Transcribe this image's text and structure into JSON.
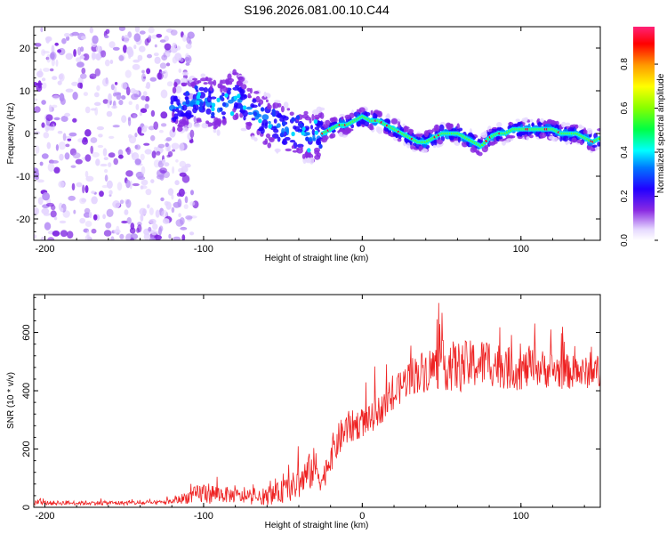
{
  "title": "S196.2026.081.00.10.C44",
  "colors": {
    "snr_line": "#ee2222",
    "axis": "#000000",
    "background": "#ffffff"
  },
  "chart_data": [
    {
      "type": "heatmap",
      "title": "S196.2026.081.00.10.C44",
      "xlabel": "Height of straight line (km)",
      "ylabel": "Frequency (Hz)",
      "xlim": [
        -207,
        150
      ],
      "ylim": [
        -25,
        25
      ],
      "xticks": [
        -200,
        -100,
        0,
        100
      ],
      "xtick_labels": [
        "-200",
        "-100",
        "0",
        "100"
      ],
      "yticks": [
        20,
        10,
        0,
        -10,
        -20
      ],
      "ytick_labels": [
        "20",
        "10",
        "0",
        "-10",
        "-20"
      ],
      "colorbar": {
        "label": "Normalized spectral amplitude",
        "range": [
          0.0,
          0.97
        ],
        "ticks": [
          0.0,
          0.2,
          0.4,
          0.6,
          0.8
        ],
        "tick_labels": [
          "0.0",
          "0.2",
          "0.4",
          "0.6",
          "0.8"
        ],
        "colormap": "rainbow (white-violet-blue-cyan-green-yellow-red-magenta)"
      },
      "ridge_path": {
        "x": [
          -120,
          -110,
          -100,
          -90,
          -80,
          -70,
          -60,
          -50,
          -40,
          -30,
          -25,
          -20,
          -15,
          -10,
          -5,
          0,
          5,
          10,
          15,
          20,
          25,
          30,
          35,
          40,
          45,
          50,
          55,
          60,
          65,
          70,
          75,
          80,
          85,
          90,
          95,
          100,
          105,
          110,
          115,
          120,
          125,
          130,
          135,
          140,
          145,
          150
        ],
        "freq": [
          6,
          7,
          8,
          6,
          9,
          5,
          3,
          1,
          0,
          -1,
          0,
          1,
          2,
          2,
          3,
          4,
          3,
          3,
          2,
          1,
          0,
          -1,
          -2,
          -2,
          -1,
          0,
          0,
          0,
          -1,
          -2,
          -3,
          -1,
          0,
          0,
          1,
          1,
          1,
          1,
          1,
          1,
          0,
          0,
          0,
          -1,
          -2,
          -1
        ]
      },
      "scatter_region": {
        "x_range": [
          -207,
          -115
        ],
        "freq_range": [
          -25,
          25
        ],
        "amplitude": "0.0-0.2 scattered blobs"
      }
    },
    {
      "type": "line",
      "xlabel": "Height of straight line (km)",
      "ylabel": "SNR (10 * v/v)",
      "xlim": [
        -207,
        150
      ],
      "ylim": [
        0,
        730
      ],
      "xticks": [
        -200,
        -100,
        0,
        100
      ],
      "xtick_labels": [
        "-200",
        "-100",
        "0",
        "100"
      ],
      "yticks": [
        0,
        200,
        400,
        600
      ],
      "ytick_labels": [
        "0",
        "200",
        "400",
        "600"
      ],
      "series": [
        {
          "name": "SNR",
          "x": [
            -207,
            -190,
            -170,
            -150,
            -130,
            -120,
            -110,
            -100,
            -90,
            -80,
            -70,
            -60,
            -50,
            -40,
            -35,
            -30,
            -25,
            -20,
            -15,
            -10,
            -5,
            0,
            5,
            10,
            15,
            20,
            25,
            30,
            40,
            50,
            60,
            70,
            80,
            90,
            100,
            110,
            120,
            130,
            140,
            150
          ],
          "mean": [
            15,
            15,
            15,
            15,
            15,
            20,
            35,
            50,
            45,
            40,
            30,
            35,
            55,
            80,
            110,
            140,
            90,
            180,
            230,
            270,
            280,
            290,
            300,
            330,
            350,
            380,
            420,
            450,
            470,
            490,
            480,
            490,
            500,
            480,
            470,
            480,
            470,
            465,
            460,
            470
          ],
          "spread": [
            15,
            15,
            15,
            15,
            15,
            18,
            45,
            80,
            60,
            50,
            40,
            55,
            80,
            110,
            130,
            140,
            80,
            120,
            120,
            120,
            110,
            100,
            100,
            100,
            100,
            110,
            120,
            130,
            150,
            170,
            180,
            170,
            170,
            150,
            140,
            130,
            130,
            120,
            110,
            110
          ]
        }
      ]
    }
  ]
}
